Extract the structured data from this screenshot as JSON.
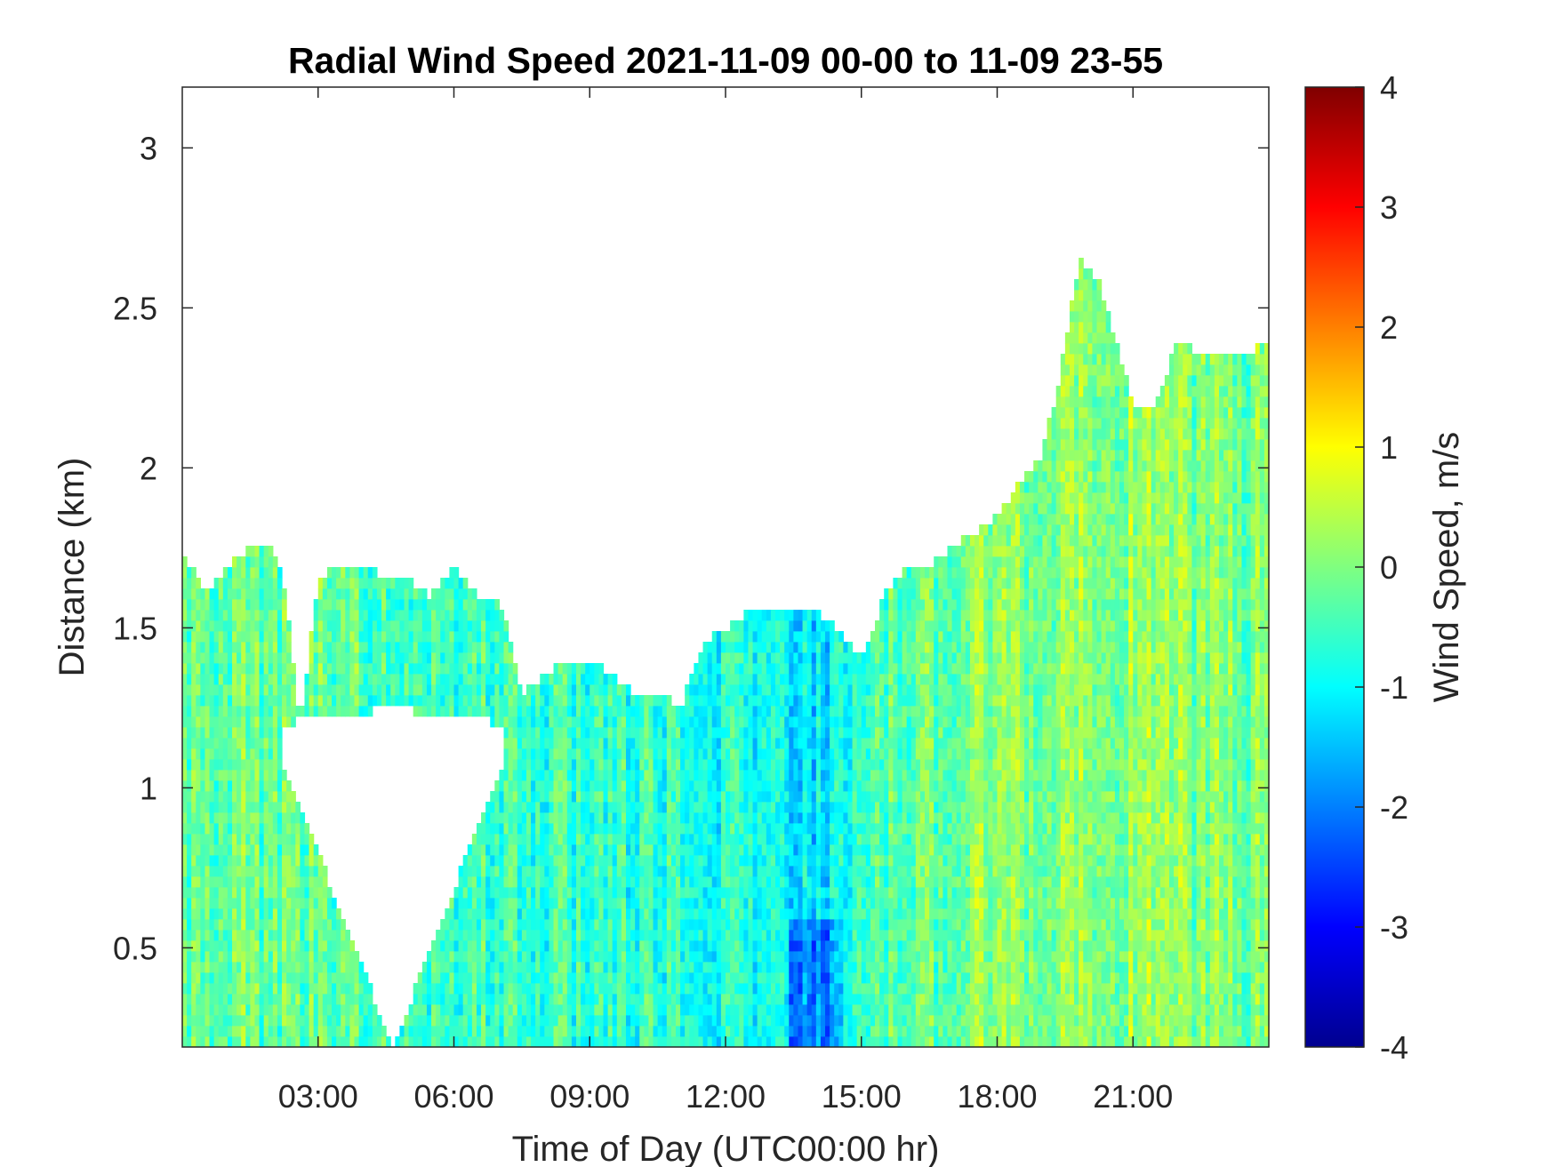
{
  "chart_data": {
    "type": "heatmap",
    "title": "Radial Wind Speed 2021-11-09 00-00 to 11-09 23-55",
    "xlabel": "Time of Day (UTC00:00 hr)",
    "ylabel": "Distance (km)",
    "colorbar_label": "Wind Speed, m/s",
    "colormap": "jet",
    "xlim_hours": [
      0,
      24
    ],
    "ylim_km": [
      0.19,
      3.19
    ],
    "clim": [
      -4,
      4
    ],
    "x_ticks": [
      {
        "hour": 3,
        "label": "03:00"
      },
      {
        "hour": 6,
        "label": "06:00"
      },
      {
        "hour": 9,
        "label": "09:00"
      },
      {
        "hour": 12,
        "label": "12:00"
      },
      {
        "hour": 15,
        "label": "15:00"
      },
      {
        "hour": 18,
        "label": "18:00"
      },
      {
        "hour": 21,
        "label": "21:00"
      }
    ],
    "y_ticks": [
      {
        "km": 0.5,
        "label": "0.5"
      },
      {
        "km": 1,
        "label": "1"
      },
      {
        "km": 1.5,
        "label": "1.5"
      },
      {
        "km": 2,
        "label": "2"
      },
      {
        "km": 2.5,
        "label": "2.5"
      },
      {
        "km": 3,
        "label": "3"
      }
    ],
    "colorbar_ticks": [
      {
        "value": 4,
        "label": "4"
      },
      {
        "value": 3,
        "label": "3"
      },
      {
        "value": 2,
        "label": "2"
      },
      {
        "value": 1,
        "label": "1"
      },
      {
        "value": 0,
        "label": "0"
      },
      {
        "value": -1,
        "label": "-1"
      },
      {
        "value": -2,
        "label": "-2"
      },
      {
        "value": -3,
        "label": "-3"
      },
      {
        "value": -4,
        "label": "-4"
      }
    ],
    "data_top_envelope": {
      "time_hr": [
        0,
        0.5,
        1,
        1.5,
        2,
        2.3,
        2.6,
        3,
        3.5,
        4,
        4.5,
        5,
        5.5,
        6,
        6.5,
        7,
        7.5,
        8,
        8.5,
        9,
        9.5,
        10,
        10.5,
        11,
        11.5,
        12,
        12.5,
        13,
        13.5,
        14,
        14.5,
        15,
        15.5,
        16,
        16.5,
        17,
        17.5,
        18,
        18.5,
        19,
        19.4,
        19.8,
        20.2,
        20.6,
        21,
        21.5,
        22,
        22.5,
        23,
        23.5,
        24
      ],
      "top_km": [
        1.75,
        1.6,
        1.7,
        1.75,
        1.75,
        1.6,
        1.2,
        1.65,
        1.7,
        1.7,
        1.65,
        1.65,
        1.6,
        1.7,
        1.6,
        1.6,
        1.3,
        1.35,
        1.4,
        1.4,
        1.35,
        1.3,
        1.3,
        1.25,
        1.45,
        1.5,
        1.55,
        1.55,
        1.55,
        1.55,
        1.5,
        1.4,
        1.6,
        1.7,
        1.7,
        1.75,
        1.8,
        1.85,
        1.95,
        2.05,
        2.3,
        2.65,
        2.6,
        2.4,
        2.2,
        2.2,
        2.4,
        2.35,
        2.35,
        2.35,
        2.4
      ]
    },
    "data_gap_regions": [
      {
        "time_hr_start": 2.2,
        "time_hr_end": 7.1,
        "note_km_top": [
          1.2,
          1.2
        ]
      }
    ],
    "mean_wind_by_time": {
      "time_hr": [
        0,
        3,
        6,
        9,
        12,
        13.5,
        14.2,
        15,
        18,
        21,
        24
      ],
      "value_ms": [
        -0.2,
        -0.2,
        -0.5,
        -0.6,
        -0.8,
        -1.0,
        -1.3,
        -0.5,
        0.1,
        0.1,
        -0.1
      ]
    }
  }
}
